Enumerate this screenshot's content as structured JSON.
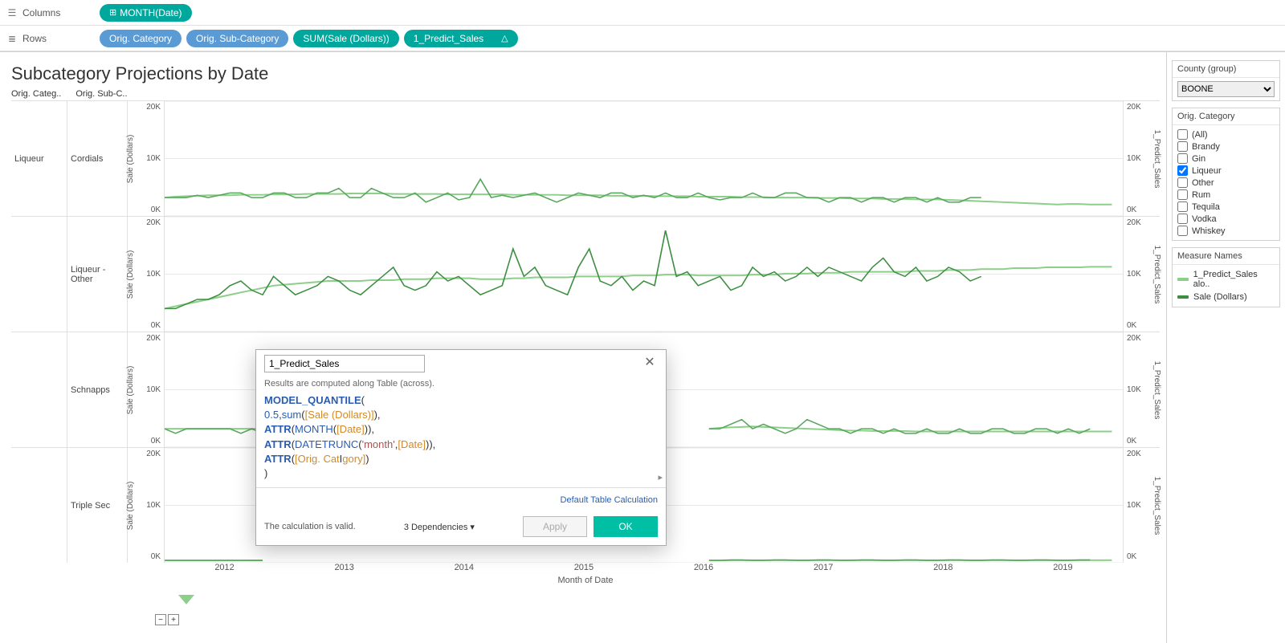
{
  "shelves": {
    "columns_label": "Columns",
    "rows_label": "Rows",
    "columns": [
      {
        "text": "MONTH(Date)",
        "color": "green",
        "plus": true
      }
    ],
    "rows": [
      {
        "text": "Orig. Category",
        "color": "blue"
      },
      {
        "text": "Orig. Sub-Category",
        "color": "blue"
      },
      {
        "text": "SUM(Sale (Dollars))",
        "color": "green"
      },
      {
        "text": "1_Predict_Sales",
        "color": "green",
        "delta": true
      }
    ]
  },
  "viz": {
    "title": "Subcategory Projections by Date",
    "col_head_1": "Orig. Categ..",
    "col_head_2": "Orig. Sub-C..",
    "y_left_title": "Sale (Dollars)",
    "y_right_title": "1_Predict_Sales",
    "y_ticks": [
      "20K",
      "10K",
      "0K"
    ],
    "x_years": [
      "2012",
      "2013",
      "2014",
      "2015",
      "2016",
      "2017",
      "2018",
      "2019"
    ],
    "x_title": "Month of Date",
    "rows": [
      {
        "category": "Liqueur",
        "subcategory": "Cordials",
        "show_cat": true,
        "series1_color": "#56a65a",
        "series2_color": "#8dcf8a",
        "ymax": 25,
        "series1": [
          4,
          4,
          4,
          4.5,
          4,
          4.5,
          5,
          5,
          4,
          4,
          5,
          5,
          4,
          4,
          5,
          5,
          6,
          4,
          4,
          6,
          5,
          4,
          4,
          5,
          3,
          4,
          5,
          3.5,
          4,
          8,
          4,
          4.5,
          4,
          4.5,
          5,
          4,
          3,
          4,
          5,
          4.5,
          4,
          5,
          5,
          4,
          4.5,
          4,
          5,
          4,
          4,
          5,
          4,
          3.5,
          4,
          4,
          5,
          4,
          4,
          5,
          5,
          4,
          4,
          3,
          4,
          4,
          3,
          4,
          4,
          3,
          4,
          4,
          3,
          4,
          3,
          3,
          4,
          4
        ],
        "series2": [
          4,
          4.2,
          4.3,
          4.4,
          4.5,
          4.5,
          4.5,
          4.6,
          4.6,
          4.6,
          4.7,
          4.7,
          4.7,
          4.8,
          4.8,
          4.8,
          4.8,
          4.9,
          4.9,
          4.9,
          4.9,
          4.8,
          4.8,
          4.8,
          4.8,
          4.8,
          4.7,
          4.7,
          4.7,
          4.7,
          4.7,
          4.7,
          4.6,
          4.6,
          4.6,
          4.6,
          4.6,
          4.5,
          4.5,
          4.5,
          4.5,
          4.4,
          4.4,
          4.4,
          4.4,
          4.3,
          4.3,
          4.3,
          4.3,
          4.2,
          4.2,
          4.2,
          4.2,
          4.1,
          4.1,
          4.1,
          4.0,
          4.0,
          4.0,
          4.0,
          3.9,
          3.9,
          3.9,
          3.8,
          3.8,
          3.8,
          3.7,
          3.7,
          3.7,
          3.6,
          3.6,
          3.6,
          3.5,
          3.4,
          3.3,
          3.2,
          3.1,
          3.0,
          2.9,
          2.8,
          2.7,
          2.6,
          2.5,
          2.6,
          2.6,
          2.5,
          2.5,
          2.5
        ]
      },
      {
        "category": "Liqueur",
        "subcategory": "Liqueur - Other",
        "show_cat": false,
        "series1_color": "#3e8e41",
        "series2_color": "#8dcf8a",
        "ymax": 25,
        "series1": [
          5,
          5,
          6,
          7,
          7,
          8,
          10,
          11,
          9,
          8,
          12,
          10,
          8,
          9,
          10,
          12,
          11,
          9,
          8,
          10,
          12,
          14,
          10,
          9,
          10,
          13,
          11,
          12,
          10,
          8,
          9,
          10,
          18,
          12,
          14,
          10,
          9,
          8,
          14,
          18,
          11,
          10,
          12,
          9,
          11,
          10,
          22,
          12,
          13,
          10,
          11,
          12,
          9,
          10,
          14,
          12,
          13,
          11,
          12,
          14,
          12,
          14,
          13,
          12,
          11,
          14,
          16,
          13,
          12,
          14,
          11,
          12,
          14,
          13,
          11,
          12
        ],
        "series2": [
          5,
          5.5,
          6,
          6.5,
          7,
          7.5,
          8,
          8.5,
          9,
          9.5,
          10,
          10.2,
          10.4,
          10.6,
          10.8,
          11,
          11,
          11,
          11,
          11.2,
          11.2,
          11.2,
          11.4,
          11.4,
          11.4,
          11.6,
          11.6,
          11.6,
          11.6,
          11.4,
          11.4,
          11.4,
          11.6,
          11.6,
          11.8,
          11.8,
          11.8,
          11.8,
          12,
          12,
          12,
          12,
          12,
          12.2,
          12.2,
          12.2,
          12.4,
          12.4,
          12.4,
          12.2,
          12.2,
          12.2,
          12.2,
          12.2,
          12.4,
          12.4,
          12.4,
          12.6,
          12.6,
          12.6,
          12.8,
          12.8,
          12.8,
          13,
          13,
          13,
          13,
          13,
          13,
          13.2,
          13.2,
          13.2,
          13.4,
          13.4,
          13.4,
          13.6,
          13.6,
          13.6,
          13.8,
          13.8,
          13.8,
          14,
          14,
          14,
          14,
          14.1,
          14.1,
          14.1
        ]
      },
      {
        "category": "Liqueur",
        "subcategory": "Schnapps",
        "show_cat": false,
        "series1_color": "#56a65a",
        "series2_color": "#8dcf8a",
        "ymax": 25,
        "series1": [
          4,
          3,
          4,
          4,
          4,
          4,
          4,
          3,
          4,
          3,
          null,
          null,
          null,
          null,
          null,
          null,
          null,
          null,
          null,
          null,
          null,
          null,
          null,
          null,
          null,
          null,
          null,
          null,
          null,
          null,
          null,
          null,
          null,
          null,
          null,
          null,
          null,
          null,
          null,
          null,
          null,
          null,
          null,
          null,
          null,
          null,
          null,
          null,
          null,
          null,
          4,
          4,
          5,
          6,
          4,
          5,
          4,
          3,
          4,
          6,
          5,
          4,
          4,
          3,
          4,
          4,
          3,
          4,
          3,
          3,
          4,
          3,
          3,
          4,
          3,
          3,
          4,
          4,
          3,
          3,
          4,
          4,
          3,
          4,
          3,
          4
        ],
        "series2": [
          4,
          4,
          4,
          4,
          4,
          4,
          4,
          4,
          4,
          4,
          null,
          null,
          null,
          null,
          null,
          null,
          null,
          null,
          null,
          null,
          null,
          null,
          null,
          null,
          null,
          null,
          null,
          null,
          null,
          null,
          null,
          null,
          null,
          null,
          null,
          null,
          null,
          null,
          null,
          null,
          null,
          null,
          null,
          null,
          null,
          null,
          null,
          null,
          null,
          null,
          4,
          4.2,
          4.3,
          4.4,
          4.5,
          4.4,
          4.3,
          4.2,
          4.1,
          4,
          3.9,
          3.8,
          3.7,
          3.6,
          3.6,
          3.5,
          3.5,
          3.5,
          3.5,
          3.4,
          3.4,
          3.4,
          3.4,
          3.4,
          3.4,
          3.4,
          3.4,
          3.4,
          3.4,
          3.4,
          3.4,
          3.4,
          3.4,
          3.4,
          3.4,
          3.4,
          3.4,
          3.4
        ]
      },
      {
        "category": "Liqueur",
        "subcategory": "Triple Sec",
        "show_cat": false,
        "series1_color": "#56a65a",
        "series2_color": "#8dcf8a",
        "ymax": 25,
        "series1": [
          0.5,
          0.5,
          0.5,
          0.5,
          0.5,
          0.5,
          0.5,
          0.5,
          0.5,
          0.5,
          null,
          null,
          null,
          null,
          null,
          null,
          null,
          null,
          null,
          null,
          null,
          null,
          null,
          null,
          null,
          null,
          null,
          null,
          null,
          null,
          null,
          null,
          null,
          null,
          null,
          null,
          null,
          null,
          null,
          null,
          null,
          null,
          null,
          null,
          null,
          null,
          null,
          null,
          null,
          null,
          0.5,
          0.5,
          0.6,
          0.6,
          0.5,
          0.5,
          0.6,
          0.6,
          0.5,
          0.5,
          0.6,
          0.6,
          0.5,
          0.5,
          0.6,
          0.6,
          0.5,
          0.5,
          0.6,
          0.6,
          0.5,
          0.5,
          0.6,
          0.6,
          0.5,
          0.5,
          0.6,
          0.6,
          0.5,
          0.5,
          0.6,
          0.6,
          0.5,
          0.5,
          0.6,
          0.6
        ],
        "series2": [
          0.5,
          0.5,
          0.5,
          0.5,
          0.5,
          0.5,
          0.5,
          0.5,
          0.5,
          0.5,
          null,
          null,
          null,
          null,
          null,
          null,
          null,
          null,
          null,
          null,
          null,
          null,
          null,
          null,
          null,
          null,
          null,
          null,
          null,
          null,
          null,
          null,
          null,
          null,
          null,
          null,
          null,
          null,
          null,
          null,
          null,
          null,
          null,
          null,
          null,
          null,
          null,
          null,
          null,
          null,
          0.5,
          0.5,
          0.55,
          0.55,
          0.55,
          0.55,
          0.55,
          0.55,
          0.55,
          0.55,
          0.55,
          0.55,
          0.55,
          0.55,
          0.55,
          0.55,
          0.55,
          0.55,
          0.55,
          0.55,
          0.55,
          0.55,
          0.55,
          0.55,
          0.55,
          0.55,
          0.55,
          0.55,
          0.55,
          0.55,
          0.55,
          0.55,
          0.55,
          0.55,
          0.55,
          0.55,
          0.55,
          0.55
        ]
      }
    ]
  },
  "side": {
    "filter1_title": "County (group)",
    "filter1_value": "BOONE",
    "filter2_title": "Orig. Category",
    "filter2_items": [
      {
        "label": "(All)",
        "checked": false
      },
      {
        "label": "Brandy",
        "checked": false
      },
      {
        "label": "Gin",
        "checked": false
      },
      {
        "label": "Liqueur",
        "checked": true
      },
      {
        "label": "Other",
        "checked": false
      },
      {
        "label": "Rum",
        "checked": false
      },
      {
        "label": "Tequila",
        "checked": false
      },
      {
        "label": "Vodka",
        "checked": false
      },
      {
        "label": "Whiskey",
        "checked": false
      }
    ],
    "legend_title": "Measure Names",
    "legend": [
      {
        "label": "1_Predict_Sales alo..",
        "color": "#8dcf8a"
      },
      {
        "label": "Sale (Dollars)",
        "color": "#3e8e41"
      }
    ]
  },
  "calc": {
    "name": "1_Predict_Sales",
    "hint": "Results are computed along Table (across).",
    "formula_tokens": [
      [
        {
          "t": "MODEL_QUANTILE",
          "c": "kw"
        },
        {
          "t": "("
        }
      ],
      [
        {
          "t": "0.5",
          "c": "num"
        },
        {
          "t": ","
        },
        {
          "t": "sum",
          "c": "fn"
        },
        {
          "t": "("
        },
        {
          "t": "[Sale (Dollars)]",
          "c": "fld"
        },
        {
          "t": "),"
        }
      ],
      [
        {
          "t": "ATTR",
          "c": "kw"
        },
        {
          "t": "("
        },
        {
          "t": "MONTH",
          "c": "fn"
        },
        {
          "t": "("
        },
        {
          "t": "[Date]",
          "c": "fld"
        },
        {
          "t": ")),"
        }
      ],
      [
        {
          "t": "ATTR",
          "c": "kw"
        },
        {
          "t": "("
        },
        {
          "t": "DATETRUNC",
          "c": "fn"
        },
        {
          "t": "("
        },
        {
          "t": "'month'",
          "c": "str"
        },
        {
          "t": ","
        },
        {
          "t": "[Date]",
          "c": "fld"
        },
        {
          "t": ")),"
        }
      ],
      [
        {
          "t": "ATTR",
          "c": "kw"
        },
        {
          "t": "("
        },
        {
          "t": "[Orig. Cat",
          "c": "fld"
        },
        {
          "t": "I",
          "c": ""
        },
        {
          "t": "gory]",
          "c": "fld"
        },
        {
          "t": ")"
        }
      ],
      [
        {
          "t": ")"
        }
      ]
    ],
    "default_link": "Default Table Calculation",
    "valid_text": "The calculation is valid.",
    "deps_text": "3 Dependencies ▾",
    "apply_label": "Apply",
    "ok_label": "OK"
  }
}
